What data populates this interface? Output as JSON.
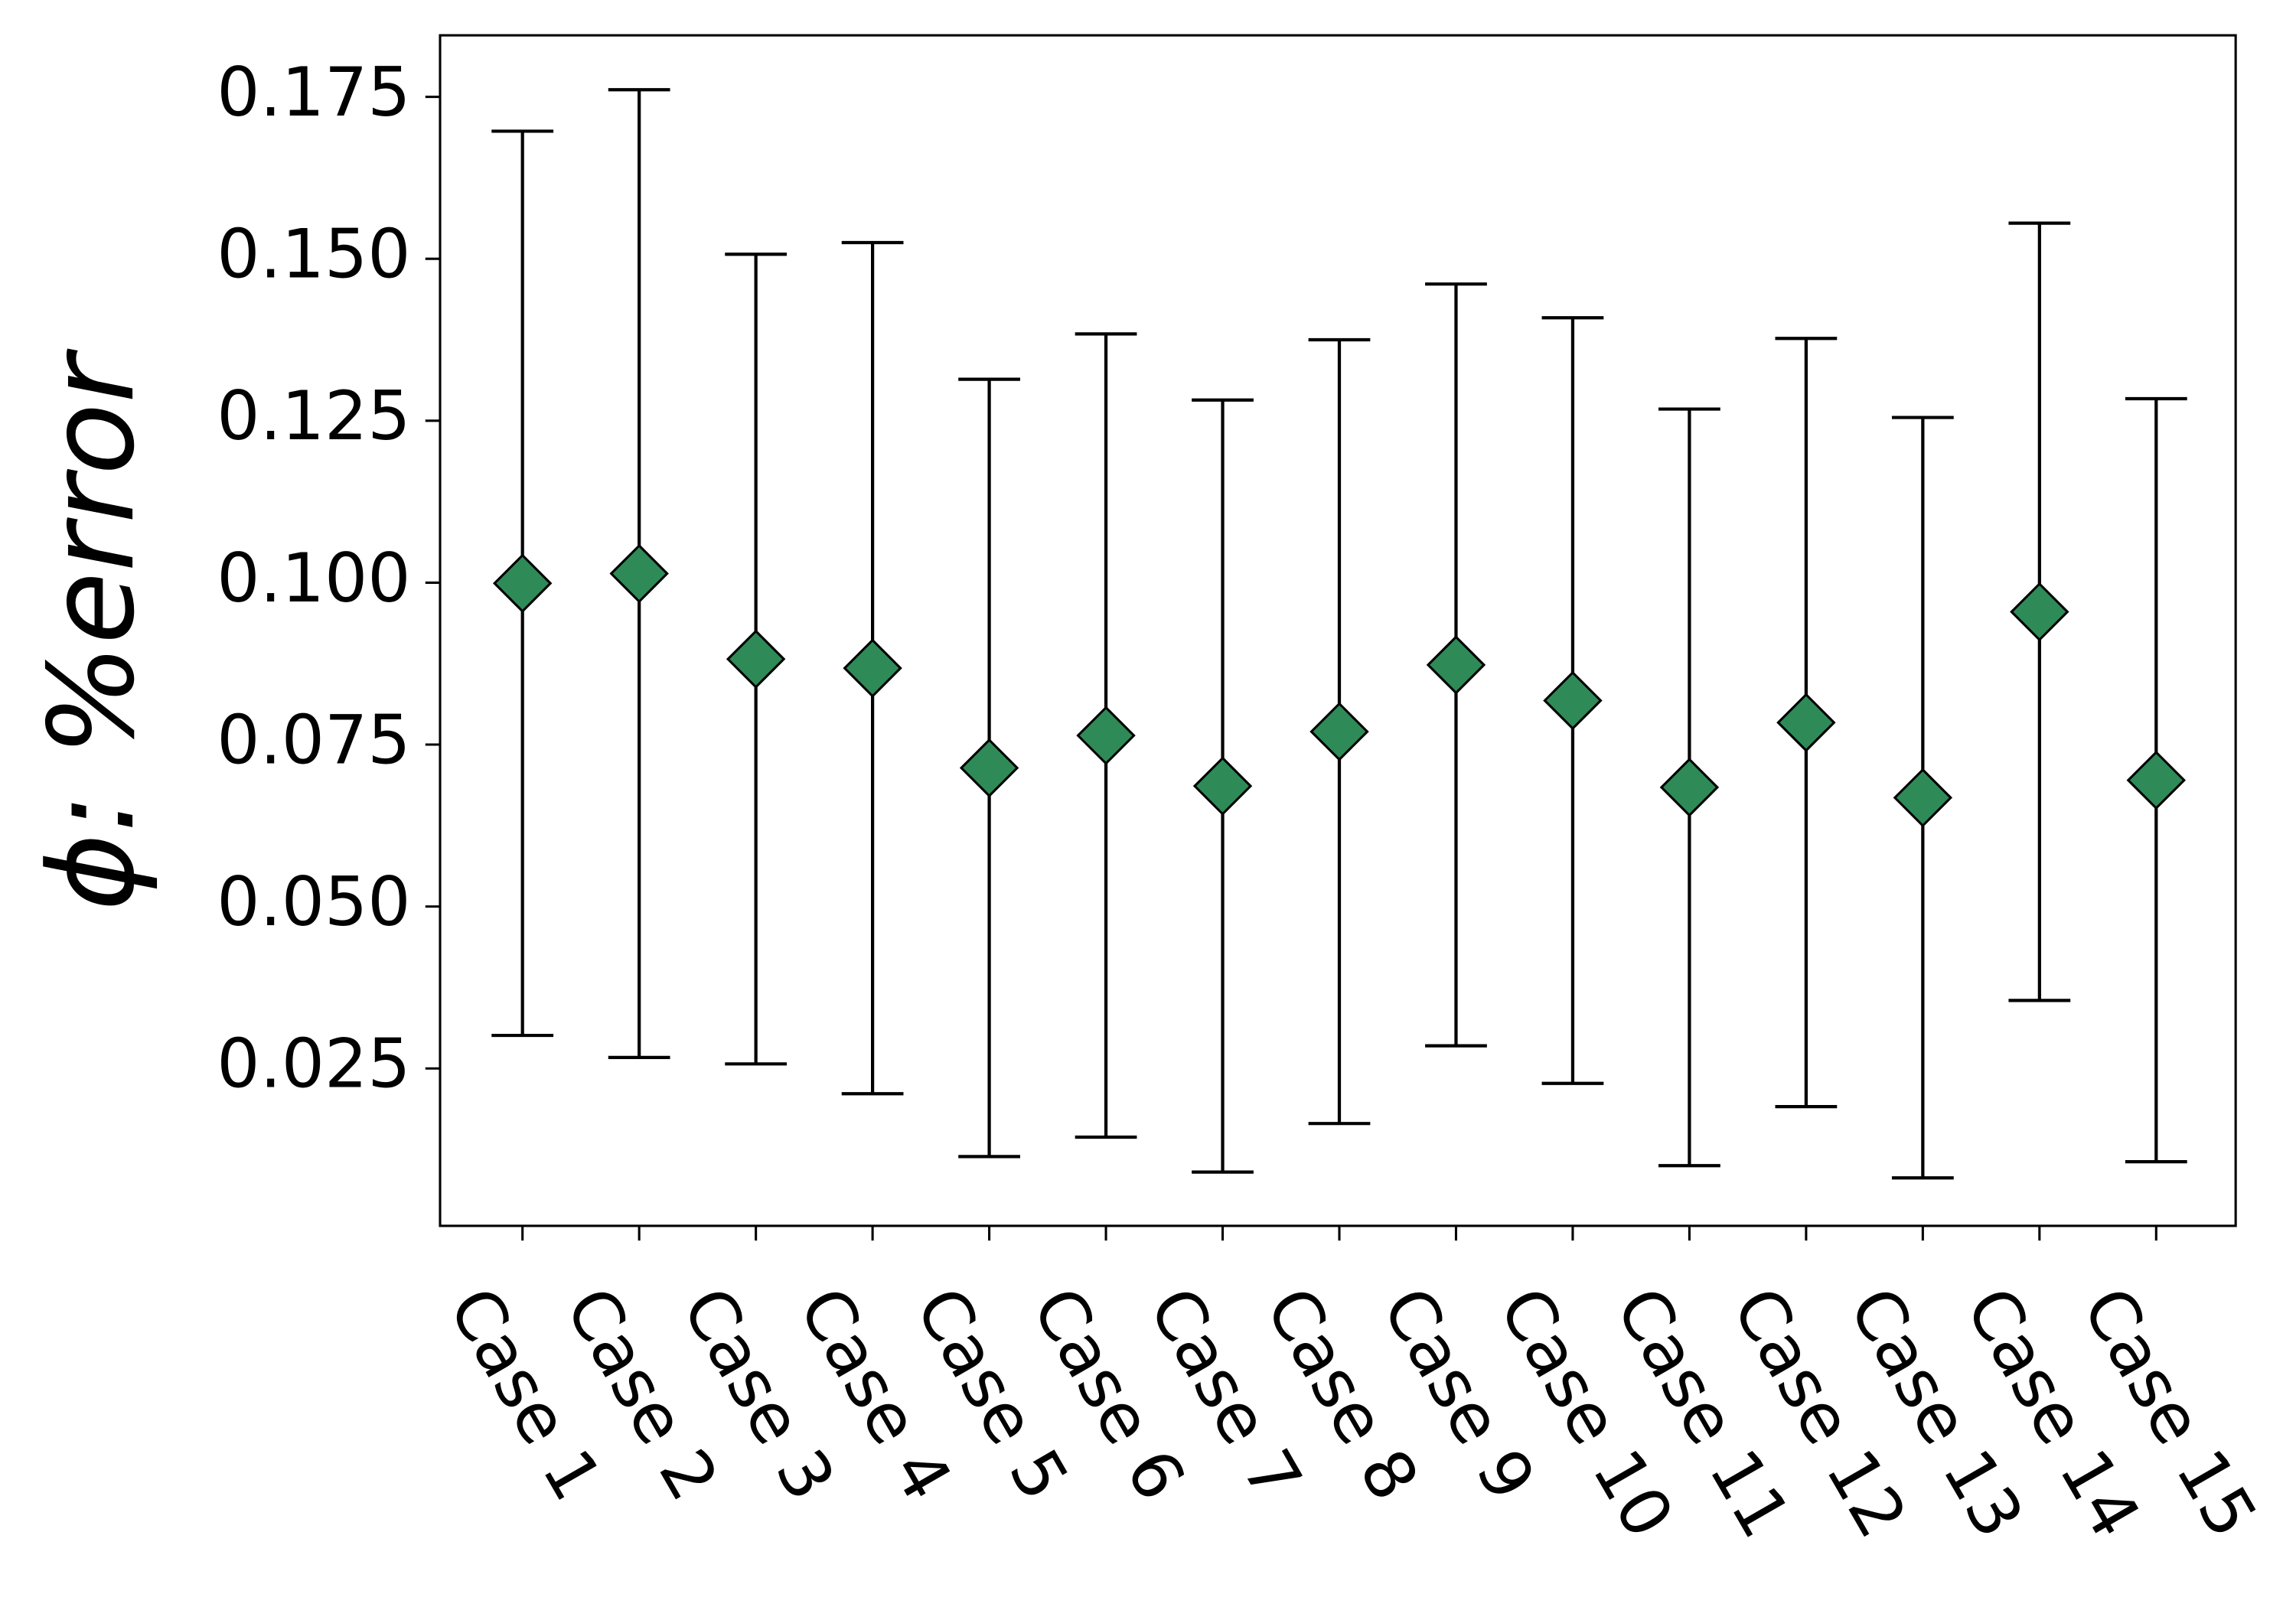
{
  "chart_data": {
    "type": "errorbar",
    "ylabel": "ϕ: %error",
    "categories": [
      "Case 1",
      "Case 2",
      "Case 3",
      "Case 4",
      "Case 5",
      "Case 6",
      "Case 7",
      "Case 8",
      "Case 9",
      "Case 10",
      "Case 11",
      "Case 12",
      "Case 13",
      "Case 14",
      "Case 15"
    ],
    "values": [
      0.0999,
      0.1014,
      0.0882,
      0.0868,
      0.0714,
      0.0764,
      0.0686,
      0.077,
      0.0873,
      0.0818,
      0.0684,
      0.0784,
      0.0668,
      0.0955,
      0.0695
    ],
    "errors": [
      0.0698,
      0.0747,
      0.0625,
      0.0657,
      0.06,
      0.062,
      0.0596,
      0.0605,
      0.0588,
      0.0591,
      0.0584,
      0.0593,
      0.0587,
      0.06,
      0.0589
    ],
    "color": "#2e8b57",
    "ylim": [
      0.0007,
      0.1845
    ],
    "yticks": [
      0.025,
      {
        "value": 0.05,
        "label": "0.050"
      },
      0.075,
      {
        "value": 0.1,
        "label": "0.100"
      },
      0.125,
      {
        "value": 0.15,
        "label": "0.150"
      },
      0.175
    ],
    "grid": false
  }
}
